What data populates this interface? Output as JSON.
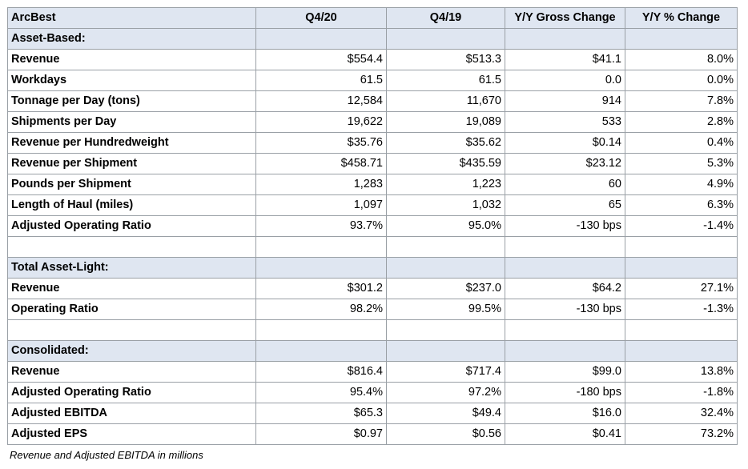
{
  "header": {
    "company": "ArcBest",
    "col1": "Q4/20",
    "col2": "Q4/19",
    "col3": "Y/Y Gross Change",
    "col4": "Y/Y % Change"
  },
  "rows": [
    {
      "type": "section",
      "label": "Asset-Based:"
    },
    {
      "type": "metric",
      "label": "Revenue",
      "q420": "$554.4",
      "q419": "$513.3",
      "gross": "$41.1",
      "pct": "8.0%"
    },
    {
      "type": "metric",
      "label": "Workdays",
      "q420": "61.5",
      "q419": "61.5",
      "gross": "0.0",
      "pct": "0.0%"
    },
    {
      "type": "metric",
      "label": "Tonnage per Day (tons)",
      "q420": "12,584",
      "q419": "11,670",
      "gross": "914",
      "pct": "7.8%"
    },
    {
      "type": "metric",
      "label": "Shipments per Day",
      "q420": "19,622",
      "q419": "19,089",
      "gross": "533",
      "pct": "2.8%"
    },
    {
      "type": "metric",
      "label": "Revenue per Hundredweight",
      "q420": "$35.76",
      "q419": "$35.62",
      "gross": "$0.14",
      "pct": "0.4%"
    },
    {
      "type": "metric",
      "label": "Revenue per Shipment",
      "q420": "$458.71",
      "q419": "$435.59",
      "gross": "$23.12",
      "pct": "5.3%"
    },
    {
      "type": "metric",
      "label": "Pounds per Shipment",
      "q420": "1,283",
      "q419": "1,223",
      "gross": "60",
      "pct": "4.9%"
    },
    {
      "type": "metric",
      "label": "Length of Haul (miles)",
      "q420": "1,097",
      "q419": "1,032",
      "gross": "65",
      "pct": "6.3%"
    },
    {
      "type": "metric",
      "label": "Adjusted Operating Ratio",
      "q420": "93.7%",
      "q419": "95.0%",
      "gross": "-130 bps",
      "pct": "-1.4%"
    },
    {
      "type": "spacer"
    },
    {
      "type": "section",
      "label": "Total Asset-Light:"
    },
    {
      "type": "metric",
      "label": "Revenue",
      "q420": "$301.2",
      "q419": "$237.0",
      "gross": "$64.2",
      "pct": "27.1%"
    },
    {
      "type": "metric",
      "label": "Operating Ratio",
      "q420": "98.2%",
      "q419": "99.5%",
      "gross": "-130 bps",
      "pct": "-1.3%"
    },
    {
      "type": "spacer"
    },
    {
      "type": "section",
      "label": "Consolidated:"
    },
    {
      "type": "metric",
      "label": "Revenue",
      "q420": "$816.4",
      "q419": "$717.4",
      "gross": "$99.0",
      "pct": "13.8%"
    },
    {
      "type": "metric",
      "label": "Adjusted Operating Ratio",
      "q420": "95.4%",
      "q419": "97.2%",
      "gross": "-180 bps",
      "pct": "-1.8%"
    },
    {
      "type": "metric",
      "label": "Adjusted EBITDA",
      "q420": "$65.3",
      "q419": "$49.4",
      "gross": "$16.0",
      "pct": "32.4%"
    },
    {
      "type": "metric",
      "label": "Adjusted EPS",
      "q420": "$0.97",
      "q419": "$0.56",
      "gross": "$0.41",
      "pct": "73.2%"
    }
  ],
  "footnote": "Revenue and Adjusted EBITDA in millions"
}
